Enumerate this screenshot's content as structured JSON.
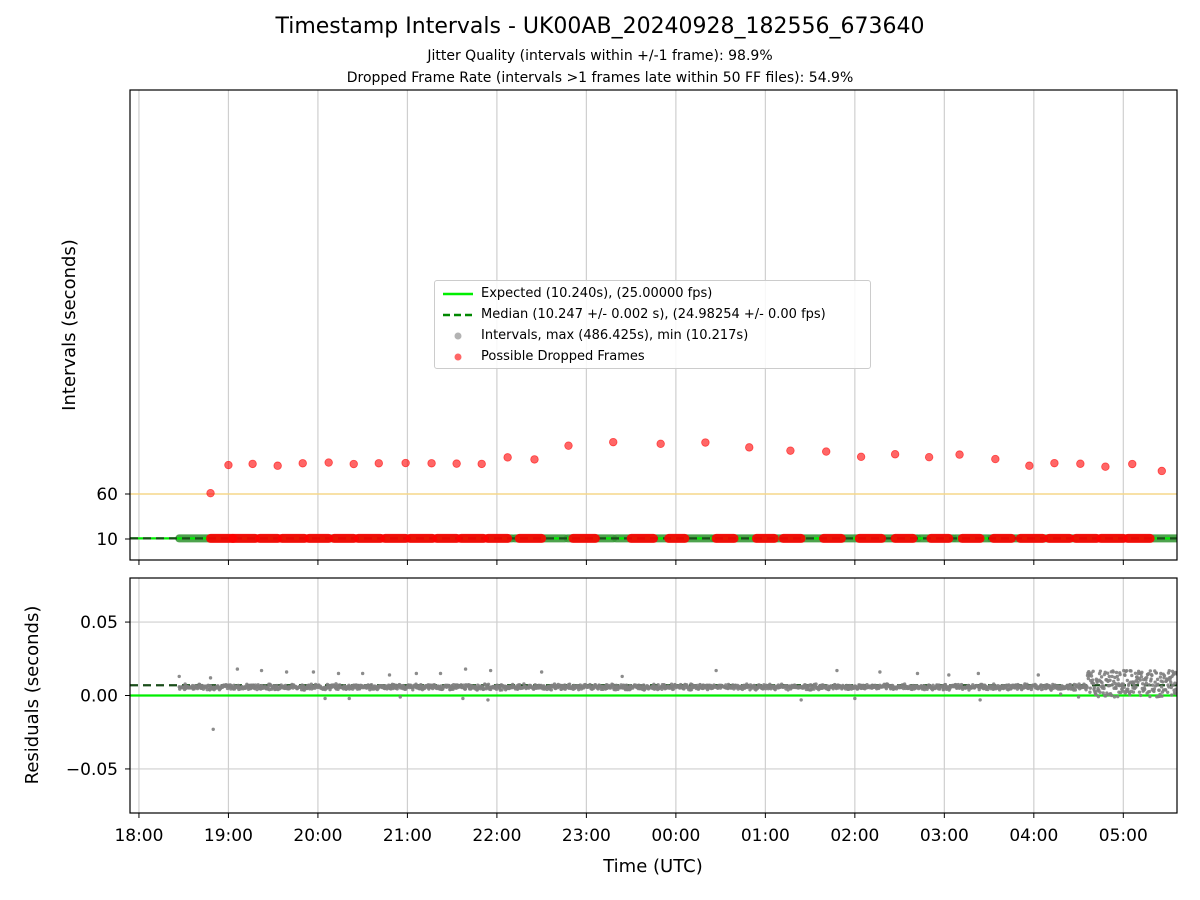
{
  "figure": {
    "title": "Timestamp Intervals - UK00AB_20240928_182556_673640",
    "subtitle_1": "Jitter Quality (intervals within +/-1 frame): 98.9%",
    "subtitle_2": "Dropped Frame Rate (intervals >1 frames late within 50 FF files): 54.9%"
  },
  "colors": {
    "expected": "#00ee00",
    "median": "#008800",
    "intervals": "#808080",
    "dropped": "#ff0000",
    "threshold": "#f5d78a",
    "grid": "#cfcfcf"
  },
  "chart_data": [
    {
      "type": "scatter",
      "name": "intervals-panel",
      "ylabel": "Intervals (seconds)",
      "yscale": "log",
      "yticks": [
        10,
        60
      ],
      "ytick_labels": [
        "10",
        "60"
      ],
      "threshold_line": 60,
      "xlim_hours": [
        17.9,
        29.6
      ],
      "legend": {
        "placement": "center",
        "entries": [
          "Expected (10.240s), (25.00000 fps)",
          "Median (10.247 +/- 0.002 s), (24.98254 +/- 0.00 fps)",
          "Intervals, max (486.425s), min (10.217s)",
          "Possible Dropped Frames"
        ]
      },
      "series": [
        {
          "name": "Expected (10.240s), (25.00000 fps)",
          "kind": "hline",
          "y": 10.24
        },
        {
          "name": "Median (10.247 +/- 0.002 s), (24.98254 +/- 0.00 fps)",
          "kind": "hline",
          "y": 10.247
        },
        {
          "name": "Intervals, max (486.425s), min (10.217s)",
          "kind": "band",
          "note_unprinted": "",
          "segments": [
            [
              18.45,
              18.82
            ],
            [
              18.83,
              19.05
            ],
            [
              19.05,
              19.3
            ],
            [
              19.32,
              19.58
            ],
            [
              19.6,
              19.87
            ],
            [
              19.89,
              20.15
            ],
            [
              20.18,
              20.43
            ],
            [
              20.46,
              20.72
            ],
            [
              20.75,
              21.01
            ],
            [
              21.03,
              21.3
            ],
            [
              21.33,
              21.59
            ],
            [
              21.62,
              21.88
            ],
            [
              21.9,
              22.17
            ],
            [
              22.2,
              22.46
            ],
            [
              22.48,
              22.76
            ],
            [
              22.79,
              23.3
            ],
            [
              23.33,
              23.9
            ],
            [
              23.92,
              24.4
            ],
            [
              24.42,
              24.9
            ],
            [
              24.93,
              25.4
            ],
            [
              25.42,
              25.85
            ],
            [
              25.87,
              26.3
            ],
            [
              26.32,
              26.7
            ],
            [
              26.72,
              27.1
            ],
            [
              27.12,
              27.5
            ],
            [
              27.52,
              27.85
            ],
            [
              27.87,
              28.15
            ],
            [
              28.17,
              28.45
            ],
            [
              28.47,
              28.72
            ],
            [
              28.74,
              28.98
            ],
            [
              29.0,
              29.25
            ],
            [
              29.27,
              29.6
            ]
          ]
        },
        {
          "name": "Possible Dropped Frames",
          "kind": "scatter",
          "x_hours": [
            18.8,
            19.0,
            19.27,
            19.55,
            19.83,
            20.12,
            20.4,
            20.68,
            20.98,
            21.27,
            21.55,
            21.83,
            22.12,
            22.42,
            22.8,
            23.3,
            23.83,
            24.33,
            24.82,
            25.28,
            25.68,
            26.07,
            26.45,
            26.83,
            27.17,
            27.57,
            27.95,
            28.23,
            28.52,
            28.8,
            29.1,
            29.43
          ],
          "y": [
            62.0,
            190,
            199,
            185,
            204,
            210,
            198,
            204,
            206,
            204,
            201,
            199,
            258,
            238,
            411,
            473,
            443,
            466,
            384,
            337,
            325,
            264,
            292,
            260,
            288,
            241,
            185,
            205,
            200,
            178,
            198,
            150
          ]
        },
        {
          "name": "Possible Dropped Frames (near expected)",
          "kind": "scatter-band",
          "note_unprinted": "",
          "segments": [
            [
              18.8,
              19.05
            ],
            [
              19.05,
              19.3
            ],
            [
              19.35,
              19.55
            ],
            [
              19.6,
              19.85
            ],
            [
              19.9,
              20.12
            ],
            [
              20.18,
              20.4
            ],
            [
              20.45,
              20.7
            ],
            [
              20.75,
              20.98
            ],
            [
              21.03,
              21.28
            ],
            [
              21.33,
              21.55
            ],
            [
              21.6,
              21.85
            ],
            [
              21.9,
              22.12
            ],
            [
              22.25,
              22.5
            ],
            [
              22.85,
              23.1
            ],
            [
              23.5,
              23.75
            ],
            [
              23.92,
              24.1
            ],
            [
              24.45,
              24.65
            ],
            [
              24.9,
              25.1
            ],
            [
              25.2,
              25.4
            ],
            [
              25.65,
              25.85
            ],
            [
              26.05,
              26.3
            ],
            [
              26.45,
              26.65
            ],
            [
              26.85,
              27.05
            ],
            [
              27.2,
              27.4
            ],
            [
              27.55,
              27.75
            ],
            [
              27.85,
              28.1
            ],
            [
              28.17,
              28.4
            ],
            [
              28.47,
              28.7
            ],
            [
              28.75,
              29.0
            ],
            [
              29.05,
              29.3
            ]
          ]
        }
      ]
    },
    {
      "type": "scatter",
      "name": "residuals-panel",
      "xlabel": "Time (UTC)",
      "ylabel": "Residuals (seconds)",
      "ylim": [
        -0.08,
        0.08
      ],
      "yticks": [
        -0.05,
        0.0,
        0.05
      ],
      "ytick_labels": [
        "−0.05",
        "0.00",
        "0.05"
      ],
      "xlim_hours": [
        17.9,
        29.6
      ],
      "xticks_hours": [
        18,
        19,
        20,
        21,
        22,
        23,
        24,
        25,
        26,
        27,
        28,
        29
      ],
      "xtick_labels": [
        "18:00",
        "19:00",
        "20:00",
        "21:00",
        "22:00",
        "23:00",
        "00:00",
        "01:00",
        "02:00",
        "03:00",
        "04:00",
        "05:00"
      ],
      "series": [
        {
          "name": "Expected",
          "kind": "hline",
          "y": 0.0
        },
        {
          "name": "Median",
          "kind": "hline",
          "y": 0.007
        },
        {
          "name": "Residuals",
          "kind": "scatter",
          "seed": 7,
          "x_range": [
            18.45,
            29.6
          ],
          "low_segment_x": [
            18.45,
            28.6
          ],
          "low_y": [
            0.003,
            0.011
          ],
          "high_segment_x": [
            28.6,
            29.6
          ],
          "high_y": [
            -0.001,
            0.017
          ],
          "outliers": [
            [
              18.83,
              -0.023
            ],
            [
              18.45,
              0.013
            ],
            [
              18.8,
              0.012
            ],
            [
              19.1,
              0.018
            ],
            [
              19.37,
              0.017
            ],
            [
              19.65,
              0.016
            ],
            [
              19.95,
              0.016
            ],
            [
              20.23,
              0.015
            ],
            [
              20.5,
              0.015
            ],
            [
              20.8,
              0.014
            ],
            [
              21.1,
              0.015
            ],
            [
              21.37,
              0.015
            ],
            [
              21.65,
              0.018
            ],
            [
              21.93,
              0.017
            ],
            [
              22.5,
              0.016
            ],
            [
              23.4,
              0.013
            ],
            [
              24.45,
              0.017
            ],
            [
              25.8,
              0.017
            ],
            [
              26.28,
              0.016
            ],
            [
              26.7,
              0.015
            ],
            [
              27.05,
              0.014
            ],
            [
              27.38,
              0.015
            ],
            [
              28.05,
              0.014
            ],
            [
              20.08,
              -0.002
            ],
            [
              20.35,
              -0.002
            ],
            [
              20.92,
              -0.001
            ],
            [
              21.62,
              -0.002
            ],
            [
              21.9,
              -0.003
            ],
            [
              25.4,
              -0.003
            ],
            [
              26.0,
              -0.002
            ],
            [
              27.4,
              -0.003
            ],
            [
              28.3,
              0.001
            ],
            [
              28.5,
              -0.001
            ]
          ]
        }
      ]
    }
  ]
}
